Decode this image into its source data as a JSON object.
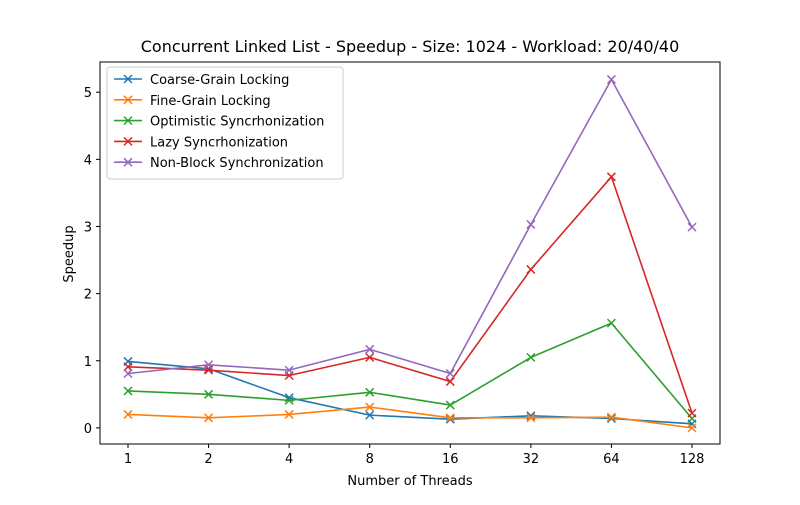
{
  "chart_data": {
    "type": "line",
    "title": "Concurrent Linked List - Speedup - Size: 1024 - Workload: 20/40/40",
    "xlabel": "Number of Threads",
    "ylabel": "Speedup",
    "x_scale": "log2",
    "categories": [
      "1",
      "2",
      "4",
      "8",
      "16",
      "32",
      "64",
      "128"
    ],
    "x": [
      1,
      2,
      4,
      8,
      16,
      32,
      64,
      128
    ],
    "ylim": [
      -0.24,
      5.45
    ],
    "yticks": [
      0,
      1,
      2,
      3,
      4,
      5
    ],
    "grid": false,
    "legend_position": "top-left",
    "marker": "x",
    "series": [
      {
        "name": "Coarse-Grain Locking",
        "color": "#1f77b4",
        "values": [
          0.99,
          0.88,
          0.45,
          0.19,
          0.13,
          0.18,
          0.14,
          0.06
        ]
      },
      {
        "name": "Fine-Grain Locking",
        "color": "#ff7f0e",
        "values": [
          0.2,
          0.15,
          0.2,
          0.31,
          0.15,
          0.15,
          0.16,
          0.0
        ]
      },
      {
        "name": "Optimistic Syncrhonization",
        "color": "#2ca02c",
        "values": [
          0.55,
          0.5,
          0.41,
          0.53,
          0.34,
          1.05,
          1.56,
          0.14
        ]
      },
      {
        "name": "Lazy Syncrhonization",
        "color": "#d62728",
        "values": [
          0.91,
          0.86,
          0.78,
          1.05,
          0.69,
          2.36,
          3.74,
          0.22
        ]
      },
      {
        "name": "Non-Block Synchronization",
        "color": "#9467bd",
        "values": [
          0.81,
          0.94,
          0.86,
          1.17,
          0.81,
          3.03,
          5.19,
          2.99
        ]
      }
    ]
  }
}
